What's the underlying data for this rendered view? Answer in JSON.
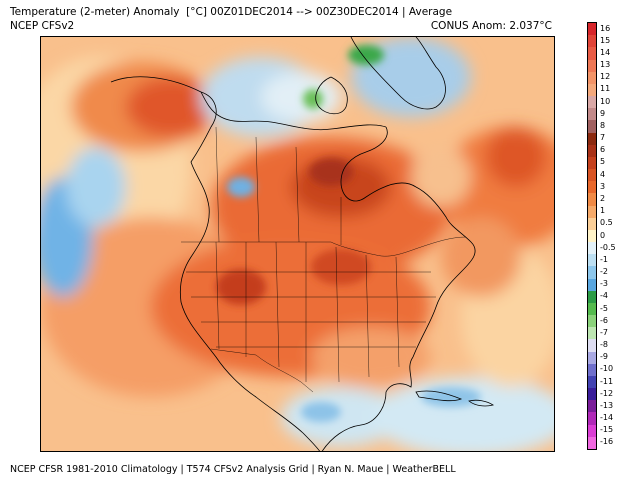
{
  "header": {
    "title": "Temperature (2-meter) Anomaly  [°C] 00Z01DEC2014 --> 00Z30DEC2014 | Average",
    "subtitle": "NCEP CFSv2",
    "conus_anom": "CONUS Anom: 2.037°C"
  },
  "footer": {
    "credit": "NCEP CFSR 1981-2010 Climatology | T574 CFSv2 Analysis Grid | Ryan N. Maue | WeatherBELL"
  },
  "legend": {
    "labels": [
      "16",
      "15",
      "14",
      "13",
      "12",
      "11",
      "10",
      "9",
      "8",
      "7",
      "6",
      "5",
      "4",
      "3",
      "2",
      "1",
      "0.5",
      "0",
      "-0.5",
      "-1",
      "-2",
      "-3",
      "-4",
      "-5",
      "-6",
      "-7",
      "-8",
      "-9",
      "-10",
      "-11",
      "-12",
      "-13",
      "-14",
      "-15",
      "-16"
    ],
    "colors": [
      "#d7262b",
      "#e04438",
      "#e85b45",
      "#ee7856",
      "#f29468",
      "#f4a97c",
      "#d9a8a6",
      "#c28a8a",
      "#a06060",
      "#8b2a10",
      "#a83218",
      "#c4411e",
      "#d85424",
      "#e8682c",
      "#f08a46",
      "#f6aa6a",
      "#fbcf98",
      "#fff3c8",
      "#e3f1f8",
      "#bcdff2",
      "#8dc7ec",
      "#5aa7e0",
      "#2c9c46",
      "#55bb4e",
      "#8ad27a",
      "#bde6b2",
      "#dedef2",
      "#a9a9e3",
      "#7070cc",
      "#4343b2",
      "#3a1e9a",
      "#7a1e9a",
      "#b02ab8",
      "#da3ed4",
      "#f068e0"
    ]
  },
  "map": {
    "region": "North America",
    "variable": "2-meter temperature anomaly",
    "units": "°C",
    "period": "00Z01DEC2014 to 00Z30DEC2014"
  }
}
